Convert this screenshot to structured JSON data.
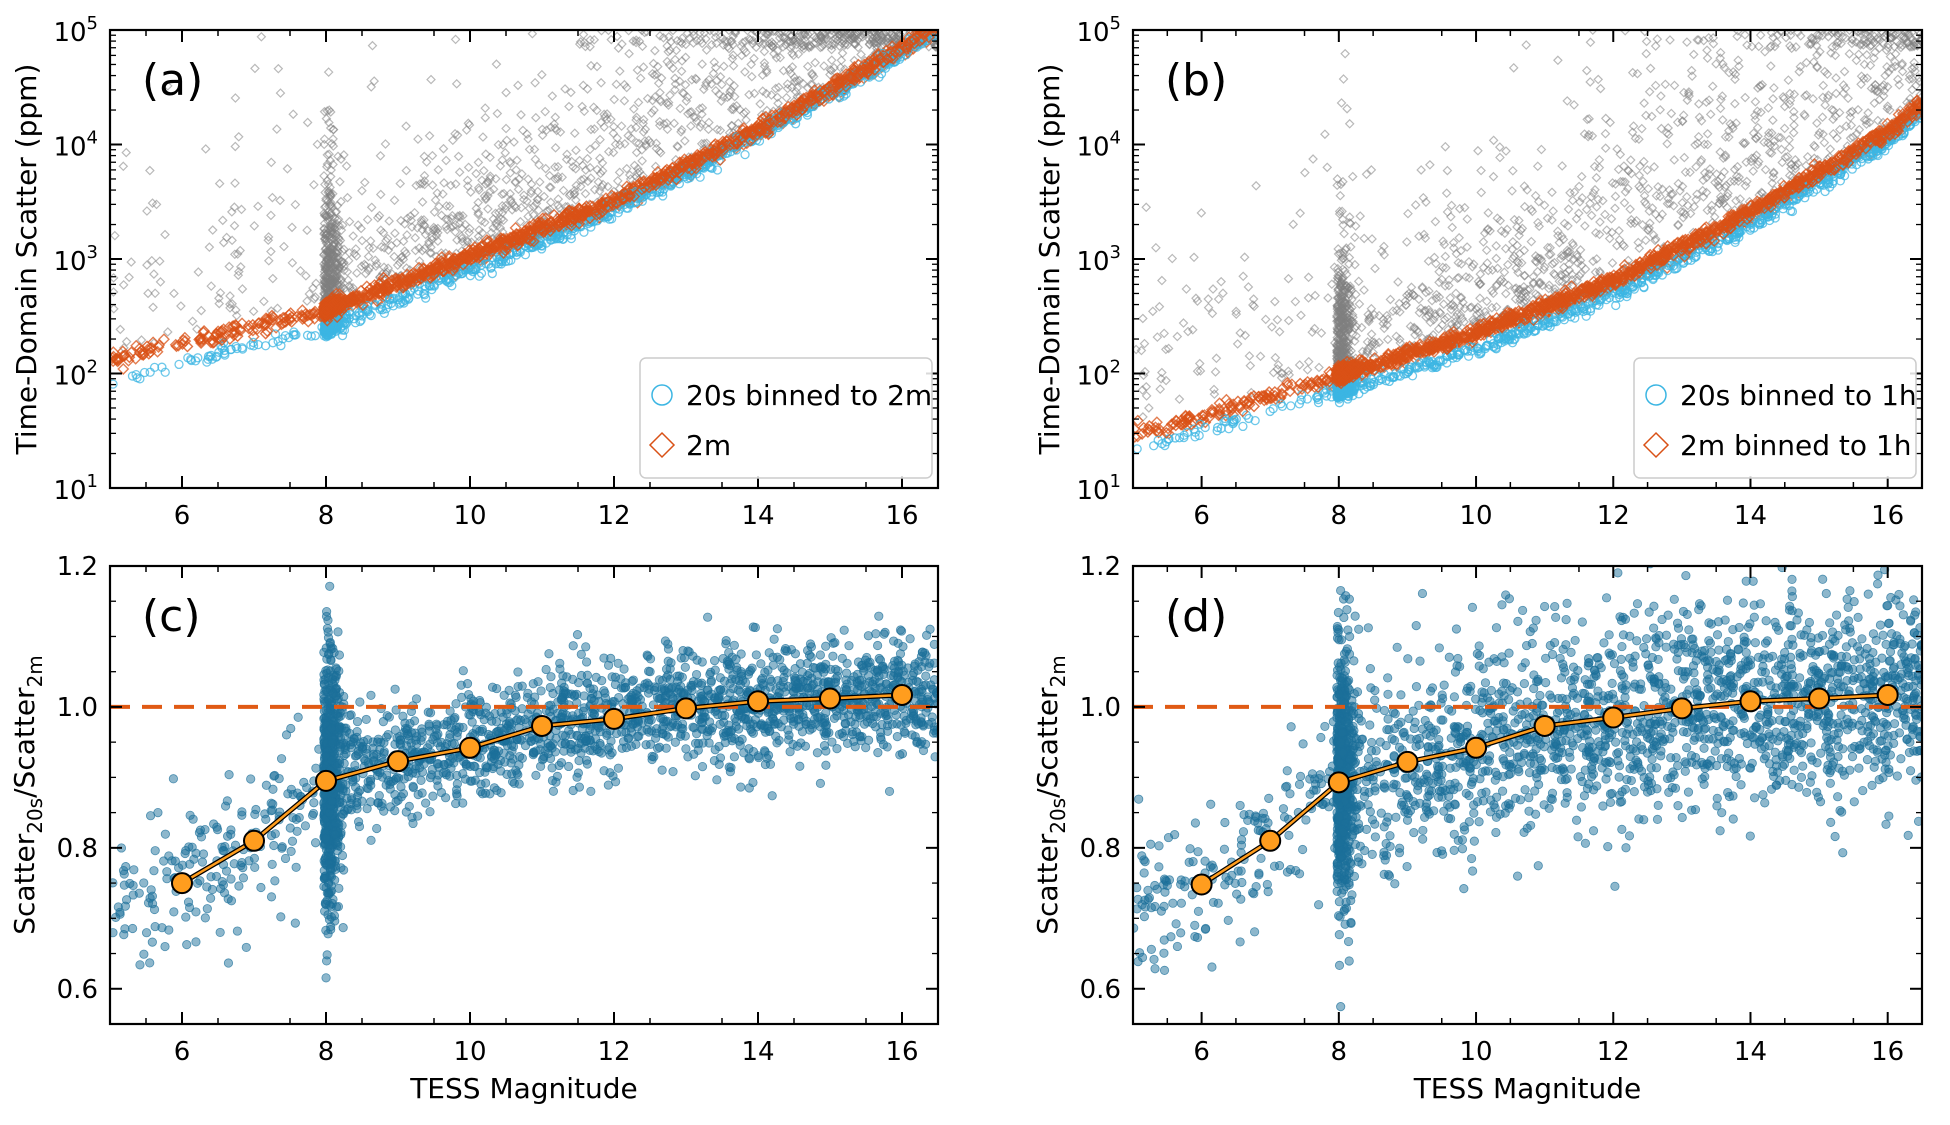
{
  "colors": {
    "gray": "#808080",
    "orange": "#d95116",
    "cyan": "#3cb6e3",
    "teal": "#1b6f9a",
    "marker": "#ff9d1e",
    "refline": "#e05a14"
  },
  "chart_data": [
    {
      "id": "a",
      "type": "scatter",
      "panel_label": "(a)",
      "yscale": "log",
      "xlim": [
        5,
        16.5
      ],
      "ylim_exp": [
        1,
        5
      ],
      "ylabel": "Time-Domain Scatter (ppm)",
      "xlabel": "",
      "x_ticks": [
        "6",
        "8",
        "10",
        "12",
        "14",
        "16"
      ],
      "y_tick_base": "10",
      "y_tick_exponents": [
        "1",
        "2",
        "3",
        "4",
        "5"
      ],
      "legend": {
        "placement": "lower-right",
        "entries": [
          "20s binned to 2m",
          "2m"
        ]
      },
      "series": [
        {
          "name": "20s binned to 2m",
          "marker": "open-circle",
          "trend_log10_ppm": [
            [
              5,
              1.95
            ],
            [
              6,
              2.1
            ],
            [
              8,
              2.4
            ],
            [
              10,
              2.9
            ],
            [
              12,
              3.42
            ],
            [
              14,
              4.08
            ],
            [
              16,
              4.8
            ],
            [
              16.5,
              5.02
            ]
          ]
        },
        {
          "name": "2m",
          "marker": "open-diamond",
          "trend_log10_ppm": [
            [
              5,
              2.12
            ],
            [
              6,
              2.27
            ],
            [
              8,
              2.55
            ],
            [
              10,
              3.02
            ],
            [
              12,
              3.5
            ],
            [
              14,
              4.12
            ],
            [
              16,
              4.84
            ],
            [
              16.5,
              5.05
            ]
          ]
        },
        {
          "name": "20s (unbinned)",
          "marker": "open-diamond-gray",
          "note": "gray scatter above trend, dense cloud for 8-11 mag"
        }
      ]
    },
    {
      "id": "b",
      "type": "scatter",
      "panel_label": "(b)",
      "yscale": "log",
      "xlim": [
        5,
        16.5
      ],
      "ylim_exp": [
        1,
        5
      ],
      "ylabel": "Time-Domain Scatter (ppm)",
      "xlabel": "",
      "x_ticks": [
        "6",
        "8",
        "10",
        "12",
        "14",
        "16"
      ],
      "y_tick_base": "10",
      "y_tick_exponents": [
        "1",
        "2",
        "3",
        "4",
        "5"
      ],
      "legend": {
        "placement": "lower-right",
        "entries": [
          "20s binned to 1h",
          "2m binned to 1h"
        ]
      },
      "series": [
        {
          "name": "20s binned to 1h",
          "marker": "open-circle",
          "trend_log10_ppm": [
            [
              5,
              1.35
            ],
            [
              6,
              1.5
            ],
            [
              8,
              1.85
            ],
            [
              10,
              2.2
            ],
            [
              12,
              2.68
            ],
            [
              14,
              3.3
            ],
            [
              16,
              4.02
            ],
            [
              16.5,
              4.25
            ]
          ]
        },
        {
          "name": "2m binned to 1h",
          "marker": "open-diamond",
          "trend_log10_ppm": [
            [
              5,
              1.48
            ],
            [
              6,
              1.62
            ],
            [
              8,
              1.98
            ],
            [
              10,
              2.35
            ],
            [
              12,
              2.8
            ],
            [
              14,
              3.4
            ],
            [
              16,
              4.1
            ],
            [
              16.5,
              4.35
            ]
          ]
        },
        {
          "name": "20s (unbinned)",
          "marker": "open-diamond-gray",
          "note": "gray scatter above trend, dense cloud for 8-11 mag"
        }
      ]
    },
    {
      "id": "c",
      "type": "scatter",
      "panel_label": "(c)",
      "yscale": "linear",
      "xlim": [
        5,
        16.5
      ],
      "ylim": [
        0.55,
        1.2
      ],
      "ylabel_main": "Scatter",
      "ylabel_sub1": "20s",
      "ylabel_sep": "/Scatter",
      "ylabel_sub2": "2m",
      "xlabel": "TESS Magnitude",
      "x_ticks": [
        "6",
        "8",
        "10",
        "12",
        "14",
        "16"
      ],
      "y_ticks": [
        "0.6",
        "0.8",
        "1.0",
        "1.2"
      ],
      "reference_line": 1.0,
      "cloud_spread": 0.04,
      "binned_median": {
        "x": [
          6,
          7,
          8,
          9,
          10,
          11,
          12,
          13,
          14,
          15,
          16
        ],
        "y": [
          0.75,
          0.81,
          0.895,
          0.923,
          0.942,
          0.973,
          0.983,
          0.998,
          1.008,
          1.012,
          1.017
        ]
      }
    },
    {
      "id": "d",
      "type": "scatter",
      "panel_label": "(d)",
      "yscale": "linear",
      "xlim": [
        5,
        16.5
      ],
      "ylim": [
        0.55,
        1.2
      ],
      "ylabel_main": "Scatter",
      "ylabel_sub1": "20s",
      "ylabel_sep": "/Scatter",
      "ylabel_sub2": "2m",
      "xlabel": "TESS Magnitude",
      "x_ticks": [
        "6",
        "8",
        "10",
        "12",
        "14",
        "16"
      ],
      "y_ticks": [
        "0.6",
        "0.8",
        "1.0",
        "1.2"
      ],
      "reference_line": 1.0,
      "cloud_spread": 0.075,
      "binned_median": {
        "x": [
          6,
          7,
          8,
          9,
          10,
          11,
          12,
          13,
          14,
          15,
          16
        ],
        "y": [
          0.748,
          0.81,
          0.893,
          0.922,
          0.942,
          0.973,
          0.985,
          0.998,
          1.008,
          1.012,
          1.017
        ]
      }
    }
  ]
}
